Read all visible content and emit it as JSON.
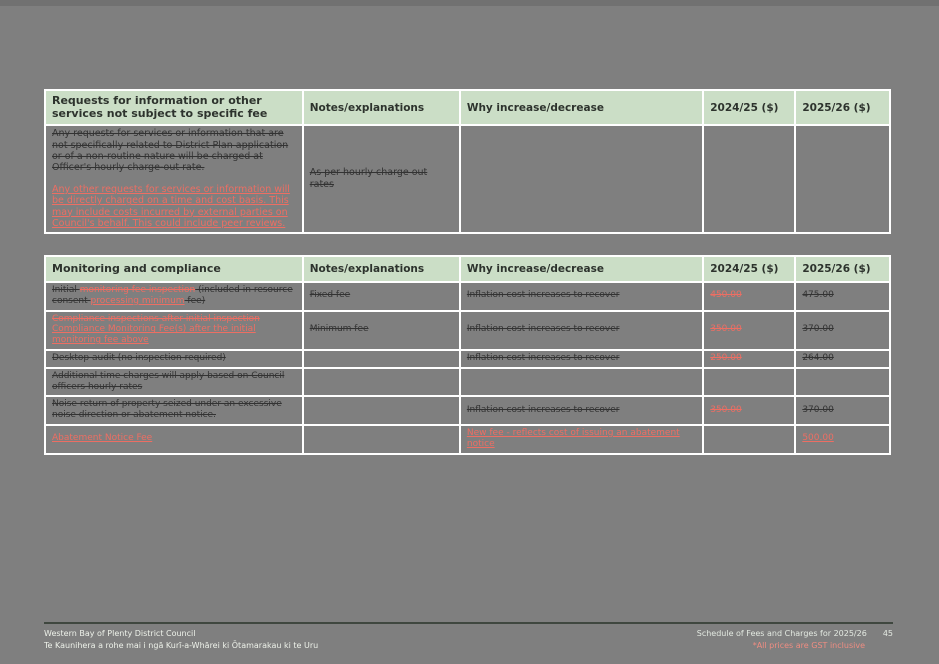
{
  "page": {
    "background": "#7f7f7f",
    "header_green": "#cbdec6",
    "change_red": "#ed6e63"
  },
  "tables": [
    {
      "title": "Requests for information or other services not subject to specific fee",
      "columns": [
        "Requests for information or other services not subject to specific fee",
        "Notes/explanations",
        "Why increase/decrease",
        "2024/25 ($)",
        "2025/26 ($)"
      ],
      "rows": [
        {
          "cells": [
            [
              [
                {
                  "t": "Any requests for services or information that are not specifically related to District Plan application or of a non-routine nature will be charged at Officer's hourly charge-out rate.",
                  "c": "black",
                  "d": "strike"
                }
              ],
              [
                {
                  "t": "Any other requests for services or information will be directly charged on a time and cost basis. This may include costs incurred by external parties on Council's behalf. This could include peer reviews.",
                  "c": "red",
                  "d": "underline"
                }
              ]
            ],
            [
              [
                {
                  "t": "As per hourly charge out rates",
                  "c": "black",
                  "d": "strike"
                }
              ]
            ],
            [],
            [],
            []
          ]
        }
      ]
    },
    {
      "title": "Monitoring and compliance",
      "columns": [
        "Monitoring and compliance",
        "Notes/explanations",
        "Why increase/decrease",
        "2024/25 ($)",
        "2025/26 ($)"
      ],
      "rows": [
        {
          "cells": [
            [
              [
                {
                  "t": "Initial ",
                  "c": "black",
                  "d": "strike"
                },
                {
                  "t": "monitoring fee inspection",
                  "c": "red",
                  "d": "strike"
                },
                {
                  "t": " (included in resource consent ",
                  "c": "black",
                  "d": "strike"
                },
                {
                  "t": "processing minimum",
                  "c": "red",
                  "d": "underline"
                },
                {
                  "t": " fee)",
                  "c": "black",
                  "d": "strike"
                }
              ]
            ],
            [
              [
                {
                  "t": "Fixed fee",
                  "c": "black",
                  "d": "strike"
                }
              ]
            ],
            [
              [
                {
                  "t": "Inflation cost increases to recover",
                  "c": "black",
                  "d": "strike"
                }
              ]
            ],
            [
              [
                {
                  "t": "450.00",
                  "c": "red",
                  "d": "strike"
                }
              ]
            ],
            [
              [
                {
                  "t": "475.00",
                  "c": "black",
                  "d": "strike"
                }
              ]
            ]
          ]
        },
        {
          "cells": [
            [
              [
                {
                  "t": "Compliance inspections after initial inspection",
                  "c": "red",
                  "d": "strike"
                },
                {
                  "t": " ",
                  "c": "red",
                  "d": ""
                },
                {
                  "t": "Compliance Monitoring Fee(s) after the initial monitoring fee above",
                  "c": "red",
                  "d": "underline"
                }
              ]
            ],
            [
              [
                {
                  "t": "Minimum fee",
                  "c": "black",
                  "d": "strike"
                }
              ]
            ],
            [
              [
                {
                  "t": "Inflation cost increases to recover",
                  "c": "black",
                  "d": "strike"
                }
              ]
            ],
            [
              [
                {
                  "t": "350.00",
                  "c": "red",
                  "d": "strike"
                }
              ]
            ],
            [
              [
                {
                  "t": "370.00",
                  "c": "black",
                  "d": "strike"
                }
              ]
            ]
          ]
        },
        {
          "cells": [
            [
              [
                {
                  "t": "Desktop audit (no inspection required)",
                  "c": "black",
                  "d": "strike"
                }
              ]
            ],
            [],
            [
              [
                {
                  "t": "Inflation cost increases to recover",
                  "c": "black",
                  "d": "strike"
                }
              ]
            ],
            [
              [
                {
                  "t": "250.00",
                  "c": "red",
                  "d": "strike"
                }
              ]
            ],
            [
              [
                {
                  "t": "264.00",
                  "c": "black",
                  "d": "strike"
                }
              ]
            ]
          ]
        },
        {
          "cells": [
            [
              [
                {
                  "t": "Additional time charges will apply based on Council officers hourly rates",
                  "c": "black",
                  "d": "strike"
                }
              ]
            ],
            [],
            [],
            [],
            []
          ]
        },
        {
          "cells": [
            [
              [
                {
                  "t": "Noise return of property seized under an excessive noise direction or abatement notice.",
                  "c": "black",
                  "d": "strike"
                }
              ]
            ],
            [],
            [
              [
                {
                  "t": "Inflation cost increases to recover",
                  "c": "black",
                  "d": "strike"
                }
              ]
            ],
            [
              [
                {
                  "t": "350.00",
                  "c": "red",
                  "d": "strike"
                }
              ]
            ],
            [
              [
                {
                  "t": "370.00",
                  "c": "black",
                  "d": "strike"
                }
              ]
            ]
          ]
        },
        {
          "cells": [
            [
              [
                {
                  "t": "Abatement Notice Fee",
                  "c": "red",
                  "d": "underline"
                }
              ]
            ],
            [],
            [
              [
                {
                  "t": "New fee - reflects cost of issuing an abatement notice",
                  "c": "red",
                  "d": "underline"
                }
              ]
            ],
            [],
            [
              [
                {
                  "t": "500.00",
                  "c": "red",
                  "d": "underline"
                }
              ]
            ]
          ]
        }
      ]
    }
  ],
  "footer": {
    "org_name": "Western Bay of Plenty District Council",
    "org_name_maori": "Te Kaunihera a rohe mai i ngā Kurī-a-Whārei ki Ōtamarakau ki te Uru",
    "doc_title": "Schedule of Fees and Charges for 2025/26",
    "page_number": "45",
    "gst_note": "*All prices are GST inclusive"
  }
}
